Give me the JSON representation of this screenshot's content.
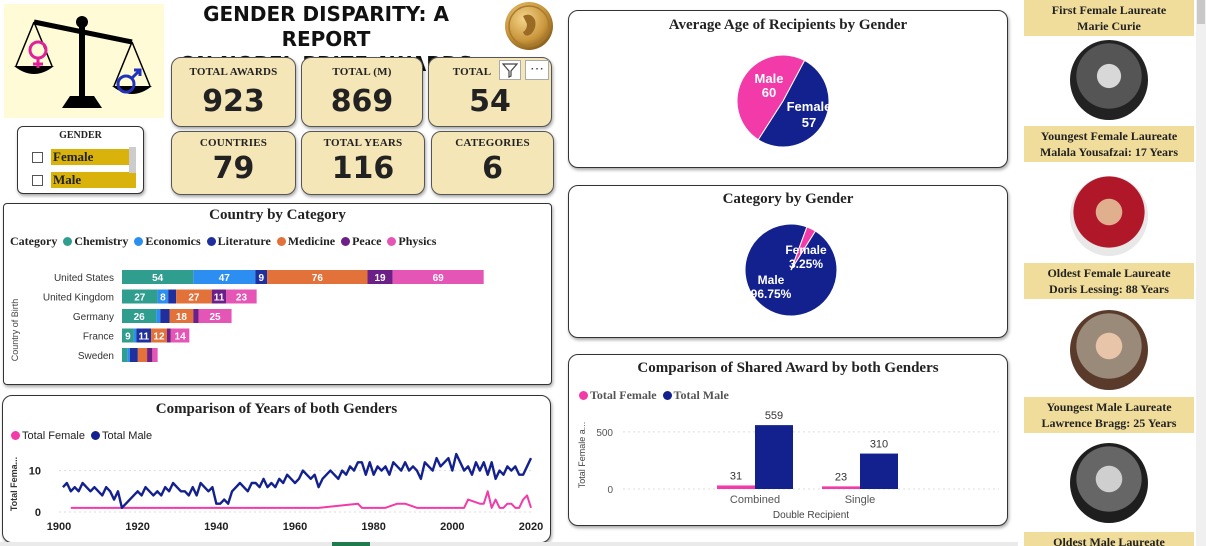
{
  "report": {
    "title_line1": "GENDER DISPARITY: A REPORT",
    "title_line2": "ON NOBEL PRIZE AWARDS"
  },
  "kpis": [
    {
      "label": "TOTAL AWARDS",
      "value": "923"
    },
    {
      "label": "TOTAL (M)",
      "value": "869"
    },
    {
      "label": "TOTAL",
      "value": "54"
    },
    {
      "label": "COUNTRIES",
      "value": "79"
    },
    {
      "label": "TOTAL YEARS",
      "value": "116"
    },
    {
      "label": "CATEGORIES",
      "value": "6"
    }
  ],
  "slicer": {
    "title": "GENDER",
    "options": [
      {
        "label": "Female",
        "checked": false
      },
      {
        "label": "Male",
        "checked": false
      }
    ]
  },
  "visual_header": {
    "filter_icon": "filter-icon",
    "more_icon": "more-options-icon"
  },
  "colors": {
    "chemistry": "#2f9e8f",
    "economics": "#2b8ef0",
    "literature": "#1f2f9e",
    "medicine": "#e2713a",
    "peace": "#6c1f86",
    "physics": "#e455b6",
    "female": "#f23ba8",
    "male": "#13218f",
    "kpi_bg": "#f5e6b8",
    "laureate_bg": "#f1dd9b",
    "slicer_highlight": "#d9b30b"
  },
  "country_chart": {
    "title": "Country by Category",
    "legend_title": "Category",
    "ylabel": "Country of Birth",
    "legend": [
      "Chemistry",
      "Economics",
      "Literature",
      "Medicine",
      "Peace",
      "Physics"
    ]
  },
  "years_chart": {
    "title": "Comparison of Years of both Genders",
    "legend": [
      "Total Female",
      "Total Male"
    ],
    "ylabel": "Total Fema...",
    "yticks": [
      "0",
      "10"
    ],
    "xticks": [
      "1900",
      "1920",
      "1940",
      "1960",
      "1980",
      "2000",
      "2020"
    ]
  },
  "avg_age_chart": {
    "title": "Average Age of Recipients by Gender"
  },
  "category_gender_chart": {
    "title": "Category by Gender"
  },
  "shared_chart": {
    "title": "Comparison of Shared Award by both Genders",
    "legend": [
      "Total Female",
      "Total Male"
    ],
    "ylabel": "Total Female a...",
    "xlabel": "Double Recipient",
    "yticks": [
      "0",
      "500"
    ]
  },
  "laureates": [
    {
      "line1": "First Female Laureate",
      "line2": "Marie Curie"
    },
    {
      "line1": "Youngest Female Laureate",
      "line2": "Malala Yousafzai: 17 Years"
    },
    {
      "line1": "Oldest Female Laureate",
      "line2": "Doris Lessing: 88 Years"
    },
    {
      "line1": "Youngest Male Laureate",
      "line2": "Lawrence Bragg: 25 Years"
    },
    {
      "line1": "Oldest Male Laureate",
      "line2": ""
    }
  ],
  "chart_data": [
    {
      "type": "bar",
      "orientation": "horizontal-stacked",
      "title": "Country by Category",
      "ylabel": "Country of Birth",
      "categories": [
        "United States",
        "United Kingdom",
        "Germany",
        "France",
        "Sweden"
      ],
      "series": [
        {
          "name": "Chemistry",
          "values": [
            54,
            27,
            26,
            9,
            4
          ]
        },
        {
          "name": "Economics",
          "values": [
            47,
            8,
            3,
            2,
            2
          ]
        },
        {
          "name": "Literature",
          "values": [
            9,
            6,
            7,
            11,
            6
          ]
        },
        {
          "name": "Medicine",
          "values": [
            76,
            27,
            18,
            12,
            7
          ]
        },
        {
          "name": "Peace",
          "values": [
            19,
            11,
            4,
            3,
            4
          ]
        },
        {
          "name": "Physics",
          "values": [
            69,
            23,
            25,
            14,
            4
          ]
        }
      ],
      "label_threshold": 8
    },
    {
      "type": "line",
      "title": "Comparison of Years of both Genders",
      "xlim": [
        1900,
        2020
      ],
      "ylim": [
        0,
        14
      ],
      "series": [
        {
          "name": "Total Female",
          "x": [
            1903,
            1905,
            1909,
            1911,
            1926,
            1928,
            1931,
            1935,
            1938,
            1945,
            1946,
            1947,
            1963,
            1964,
            1966,
            1976,
            1977,
            1979,
            1982,
            1983,
            1986,
            1988,
            1991,
            1992,
            1993,
            1995,
            1997,
            2003,
            2004,
            2007,
            2008,
            2009,
            2010,
            2011,
            2012,
            2013,
            2014,
            2015,
            2016,
            2017,
            2018,
            2019,
            2020
          ],
          "y": [
            1,
            1,
            1,
            1,
            1,
            1,
            1,
            1,
            1,
            1,
            1,
            1,
            1,
            1,
            1,
            2,
            1,
            1,
            1,
            1,
            2,
            2,
            1,
            1,
            1,
            1,
            1,
            1,
            3,
            2,
            2,
            5,
            1,
            3,
            1,
            1,
            2,
            2,
            1,
            1,
            3,
            4,
            1
          ]
        },
        {
          "name": "Total Male",
          "x": [
            1901,
            1902,
            1903,
            1904,
            1905,
            1906,
            1907,
            1908,
            1909,
            1910,
            1911,
            1912,
            1913,
            1914,
            1915,
            1916,
            1917,
            1918,
            1919,
            1920,
            1921,
            1922,
            1923,
            1924,
            1925,
            1926,
            1927,
            1928,
            1929,
            1930,
            1931,
            1932,
            1933,
            1934,
            1935,
            1936,
            1937,
            1938,
            1939,
            1940,
            1941,
            1942,
            1943,
            1944,
            1945,
            1946,
            1947,
            1948,
            1949,
            1950,
            1951,
            1952,
            1953,
            1954,
            1955,
            1956,
            1957,
            1958,
            1959,
            1960,
            1961,
            1962,
            1963,
            1964,
            1965,
            1966,
            1967,
            1968,
            1969,
            1970,
            1971,
            1972,
            1973,
            1974,
            1975,
            1976,
            1977,
            1978,
            1979,
            1980,
            1981,
            1982,
            1983,
            1984,
            1985,
            1986,
            1987,
            1988,
            1989,
            1990,
            1991,
            1992,
            1993,
            1994,
            1995,
            1996,
            1997,
            1998,
            1999,
            2000,
            2001,
            2002,
            2003,
            2004,
            2005,
            2006,
            2007,
            2008,
            2009,
            2010,
            2011,
            2012,
            2013,
            2014,
            2015,
            2016,
            2017,
            2018,
            2019,
            2020
          ],
          "y": [
            6,
            7,
            5,
            6,
            5,
            7,
            6,
            5,
            6,
            5,
            4,
            6,
            5,
            3,
            5,
            1,
            2,
            3,
            4,
            5,
            4,
            6,
            5,
            4,
            5,
            4,
            6,
            5,
            7,
            6,
            5,
            5,
            4,
            6,
            4,
            7,
            6,
            5,
            6,
            2,
            2,
            3,
            2,
            5,
            6,
            7,
            6,
            5,
            7,
            7,
            6,
            8,
            6,
            7,
            6,
            8,
            7,
            9,
            8,
            7,
            8,
            10,
            9,
            8,
            9,
            6,
            8,
            9,
            10,
            9,
            8,
            10,
            9,
            11,
            10,
            12,
            12,
            9,
            12,
            9,
            11,
            10,
            11,
            9,
            12,
            11,
            10,
            12,
            10,
            11,
            10,
            8,
            12,
            11,
            10,
            13,
            11,
            12,
            13,
            10,
            14,
            12,
            10,
            11,
            9,
            12,
            10,
            12,
            9,
            12,
            8,
            10,
            9,
            11,
            10,
            11,
            9,
            9,
            11,
            13
          ]
        }
      ]
    },
    {
      "type": "pie",
      "title": "Average Age of Recipients by Gender",
      "labels": [
        "Male",
        "Female"
      ],
      "values": [
        60,
        57
      ]
    },
    {
      "type": "pie",
      "title": "Category by Gender",
      "labels": [
        "Male",
        "Female"
      ],
      "values": [
        96.75,
        3.25
      ],
      "unit": "%"
    },
    {
      "type": "bar",
      "title": "Comparison of Shared Award by both Genders",
      "xlabel": "Double Recipient",
      "ylabel": "Total Female a...",
      "categories": [
        "Combined",
        "Single"
      ],
      "series": [
        {
          "name": "Total Female",
          "values": [
            31,
            23
          ]
        },
        {
          "name": "Total Male",
          "values": [
            559,
            310
          ]
        }
      ],
      "ylim": [
        0,
        700
      ]
    }
  ]
}
